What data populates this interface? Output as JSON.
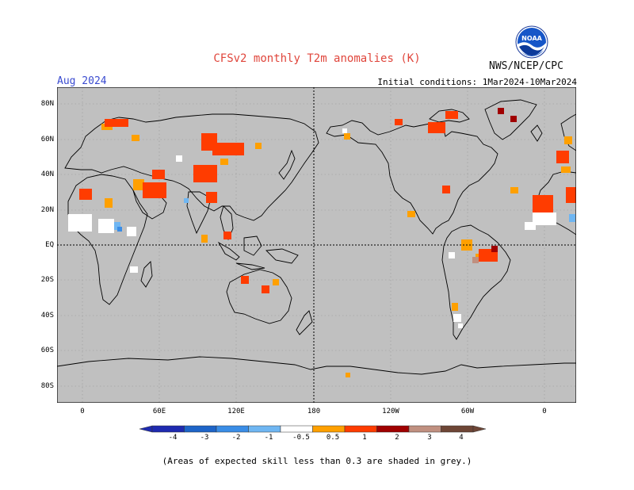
{
  "header": {
    "title": "CFSv2 monthly T2m anomalies (K)",
    "valid_month": "Aug 2024",
    "initial_conditions": "Initial conditions: 1Mar2024-10Mar2024",
    "agency": "NWS/NCEP/CPC",
    "logo_text": "NOAA"
  },
  "map": {
    "background_color": "#c0c0c0",
    "lat_labels": [
      "80N",
      "60N",
      "40N",
      "20N",
      "EQ",
      "20S",
      "40S",
      "60S",
      "80S"
    ],
    "lon_labels": [
      "0",
      "60E",
      "120E",
      "180",
      "120W",
      "60W",
      "0"
    ]
  },
  "colorbar": {
    "labels": [
      "-4",
      "-3",
      "-2",
      "-1",
      "-0.5",
      "0.5",
      "1",
      "2",
      "3",
      "4"
    ],
    "colors": [
      "#1e2ab0",
      "#1d64c8",
      "#3a8de6",
      "#6fb6f2",
      "#ffffff",
      "#ffa000",
      "#ff3c00",
      "#a00000",
      "#c09080",
      "#6e4636"
    ]
  },
  "footer": {
    "note": "(Areas of expected skill less than 0.3 are shaded in grey.)"
  }
}
